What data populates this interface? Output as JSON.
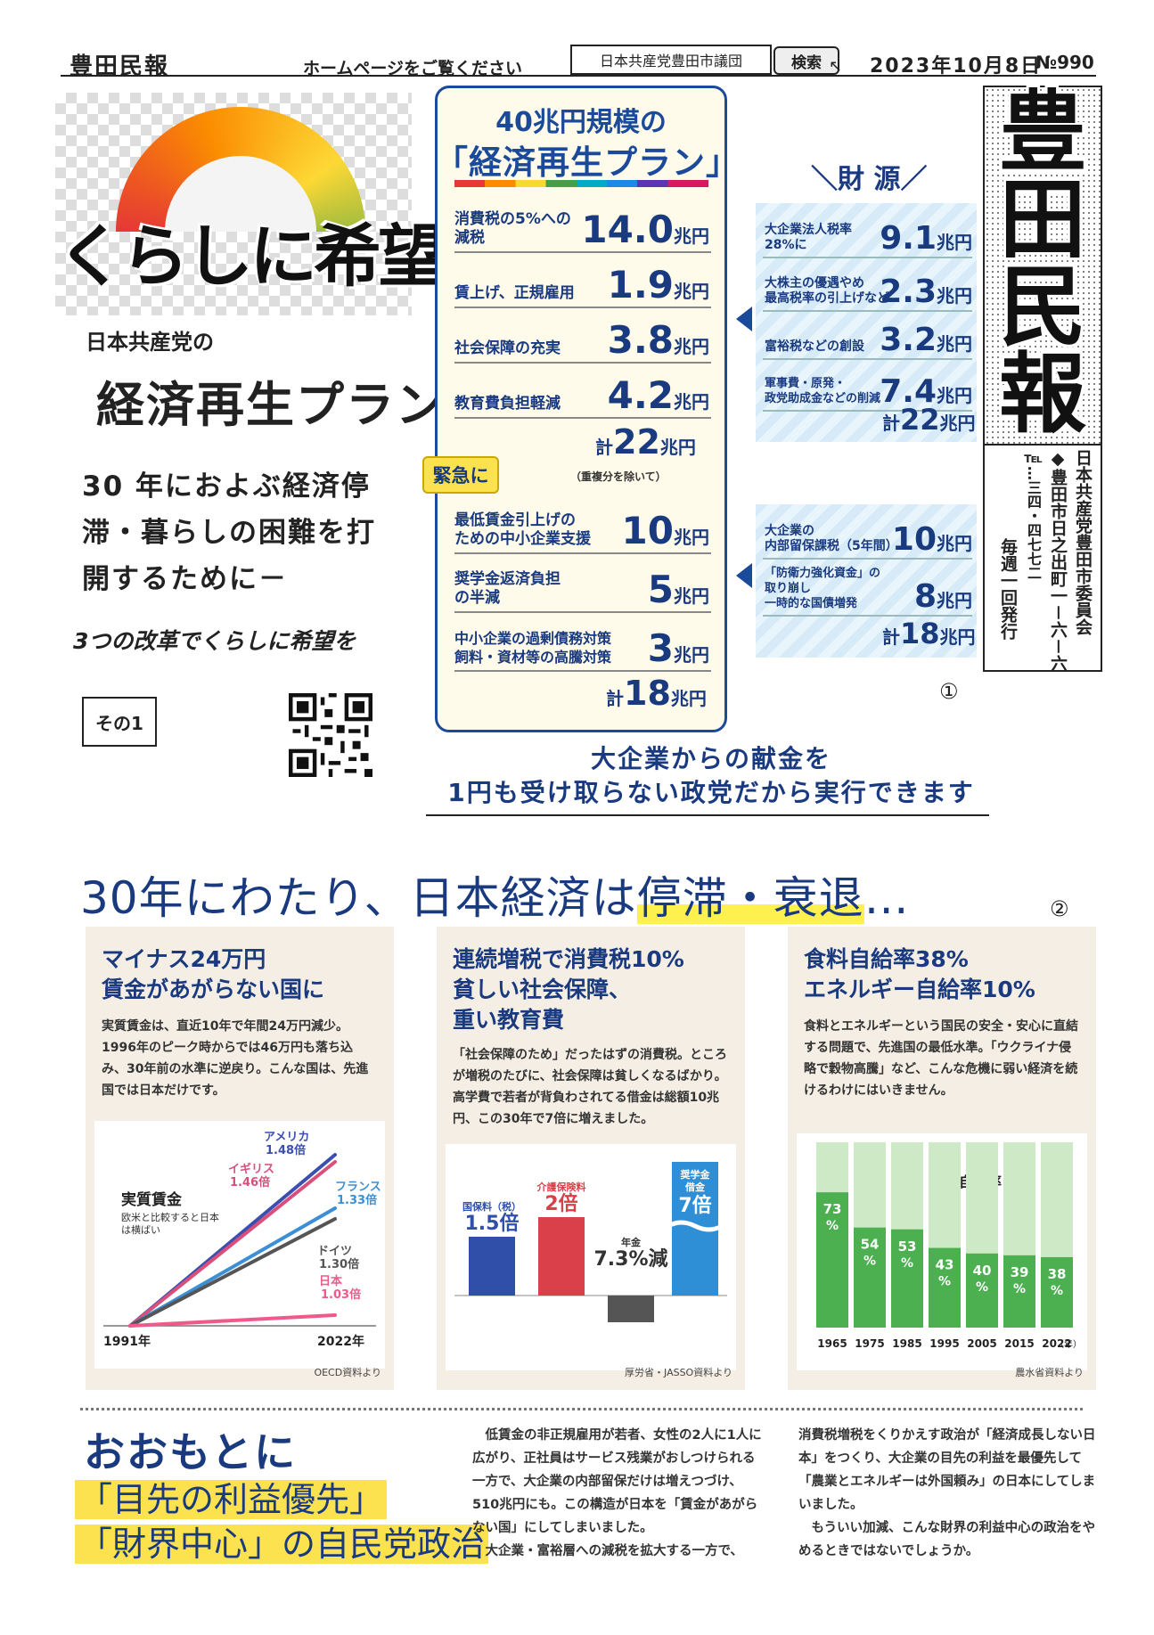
{
  "header": {
    "brand": "豊田民報",
    "homepage_text": "ホームページをご覧ください",
    "search_value": "日本共産党豊田市議団",
    "search_button": "検索",
    "date": "2023年10月8日",
    "issue": "№990"
  },
  "left": {
    "headline": "くらしに希望を",
    "party": "日本共産党の",
    "plan": "経済再生プラン",
    "lead": [
      "30 年におよぶ経済停",
      "滞・暮らしの困難を打",
      "開するために－"
    ],
    "reforms": "3つの改革でくらしに希望を",
    "part": "その1"
  },
  "plan_box": {
    "title_line1": "40兆円規模の",
    "title_line2": "「経済再生プラン」",
    "items": [
      {
        "label": "消費税の5%への\n減税",
        "amount": "14.0",
        "unit": "兆円"
      },
      {
        "label": "賃上げ、正規雇用",
        "amount": "1.9",
        "unit": "兆円"
      },
      {
        "label": "社会保障の充実",
        "amount": "3.8",
        "unit": "兆円"
      },
      {
        "label": "教育費負担軽減",
        "amount": "4.2",
        "unit": "兆円"
      }
    ],
    "total1_prefix": "計",
    "total1": "22",
    "total1_unit": "兆円",
    "total1_note": "（重複分を除いて）",
    "urgent_badge": "緊急に",
    "urgent_items": [
      {
        "label": "最低賃金引上げの\nための中小企業支援",
        "amount": "10",
        "unit": "兆円"
      },
      {
        "label": "奨学金返済負担\nの半減",
        "amount": "5",
        "unit": "兆円"
      },
      {
        "label": "中小企業の過剰債務対策\n飼料・資材等の高騰対策",
        "amount": "3",
        "unit": "兆円"
      }
    ],
    "total2_prefix": "計",
    "total2": "18",
    "total2_unit": "兆円"
  },
  "funding": {
    "title": "＼財 源／",
    "group1": [
      {
        "label": "大企業法人税率\n28%に",
        "amount": "9.1",
        "unit": "兆円"
      },
      {
        "label": "大株主の優遇やめ\n最高税率の引上げなど",
        "amount": "2.3",
        "unit": "兆円"
      },
      {
        "label": "富裕税などの創設",
        "amount": "3.2",
        "unit": "兆円"
      },
      {
        "label": "軍事費・原発・\n政党助成金などの削減",
        "amount": "7.4",
        "unit": "兆円"
      }
    ],
    "group1_total_prefix": "計",
    "group1_total": "22",
    "group1_total_unit": "兆円",
    "group2": [
      {
        "label": "大企業の\n内部留保課税（5年間）",
        "amount": "10",
        "unit": "兆円"
      },
      {
        "label": "「防衛力強化資金」の\n取り崩し\n一時的な国債増発",
        "amount": "8",
        "unit": "兆円"
      }
    ],
    "group2_total_prefix": "計",
    "group2_total": "18",
    "group2_total_unit": "兆円",
    "marker": "①"
  },
  "masthead": {
    "title": [
      "豊",
      "田",
      "民",
      "報"
    ],
    "info_cols": [
      "日本共産党豊田市委員会",
      "◆豊田市日之出町一－六－六",
      "℡…三四・四七七二",
      "毎週一回発行"
    ]
  },
  "tagline": [
    "大企業からの献金を",
    "1円も受け取らない政党だから実行できます"
  ],
  "section2": {
    "title_plain": "30年にわたり、日本経済は",
    "title_highlight": "停滞・衰退",
    "title_end": "…",
    "marker": "②",
    "cards": [
      {
        "title": [
          "マイナス24万円",
          "賃金があがらない国に"
        ],
        "text": "実質賃金は、直近10年で年間24万円減少。1996年のピーク時からでは46万円も落ち込み、30年前の水準に逆戻り。こんな国は、先進国では日本だけです。",
        "source": "OECD資料より"
      },
      {
        "title": [
          "連続増税で消費税10%",
          "貧しい社会保障、",
          "重い教育費"
        ],
        "text": "「社会保障のため」だったはずの消費税。ところが増税のたびに、社会保障は貧しくなるばかり。高学費で若者が背負わされてる借金は総額10兆円、この30年で7倍に増えました。",
        "source": "厚労省・JASSO資料より"
      },
      {
        "title": [
          "食料自給率38%",
          "エネルギー自給率10%"
        ],
        "text": "食料とエネルギーという国民の安全・安心に直結する問題で、先進国の最低水準。「ウクライナ侵略で穀物高騰」など、こんな危機に弱い経済を続けるわけにはいきません。",
        "source": "農水省資料より"
      }
    ]
  },
  "chart_data": [
    {
      "type": "line",
      "title": "実質賃金",
      "subtitle": "欧米と比較すると日本は横ばい",
      "x": [
        "1991年",
        "2022年"
      ],
      "series": [
        {
          "name": "アメリカ",
          "label": "1.48倍",
          "values": [
            1.0,
            1.48
          ],
          "color": "#3a4fb0"
        },
        {
          "name": "イギリス",
          "label": "1.46倍",
          "values": [
            1.0,
            1.46
          ],
          "color": "#d94f7a"
        },
        {
          "name": "フランス",
          "label": "1.33倍",
          "values": [
            1.0,
            1.33
          ],
          "color": "#3b8fd6"
        },
        {
          "name": "ドイツ",
          "label": "1.30倍",
          "values": [
            1.0,
            1.3
          ],
          "color": "#555555"
        },
        {
          "name": "日本",
          "label": "1.03倍",
          "values": [
            1.0,
            1.03
          ],
          "color": "#f05a8a"
        }
      ]
    },
    {
      "type": "bar",
      "categories": [
        "国保料（税）",
        "介護保険料",
        "年金",
        "奨学金借金"
      ],
      "values": [
        1.5,
        2,
        -0.073,
        7
      ],
      "labels": [
        "1.5倍",
        "2倍",
        "7.3%減",
        "7倍"
      ],
      "colors": [
        "#2f4fa8",
        "#d9404a",
        "#555555",
        "#2f8fd6"
      ]
    },
    {
      "type": "bar",
      "title": "食料自給率",
      "categories": [
        "1965",
        "1975",
        "1985",
        "1995",
        "2005",
        "2015",
        "2022"
      ],
      "values": [
        73,
        54,
        53,
        43,
        40,
        39,
        38
      ],
      "unit": "%",
      "x_suffix": "（年）",
      "ylim": [
        0,
        100
      ],
      "color": "#4caf50"
    }
  ],
  "section3": {
    "title1": "おおもとに",
    "title2": "「目先の利益優先」",
    "title3": "「財界中心」の自民党政治",
    "body1": "　低賃金の非正規雇用が若者、女性の2人に1人に広がり、正社員はサービス残業がおしつけられる一方で、大企業の内部留保だけは増えつづけ、510兆円にも。この構造が日本を「賃金があがらない国」にしてしまいました。\n　大企業・富裕層への減税を拡大する一方で、",
    "body2": "消費税増税をくりかえす政治が「経済成長しない日本」をつくり、大企業の目先の利益を最優先して「農業とエネルギーは外国頼み」の日本にしてしまいました。\n　もういい加減、こんな財界の利益中心の政治をやめるときではないでしょうか。"
  }
}
